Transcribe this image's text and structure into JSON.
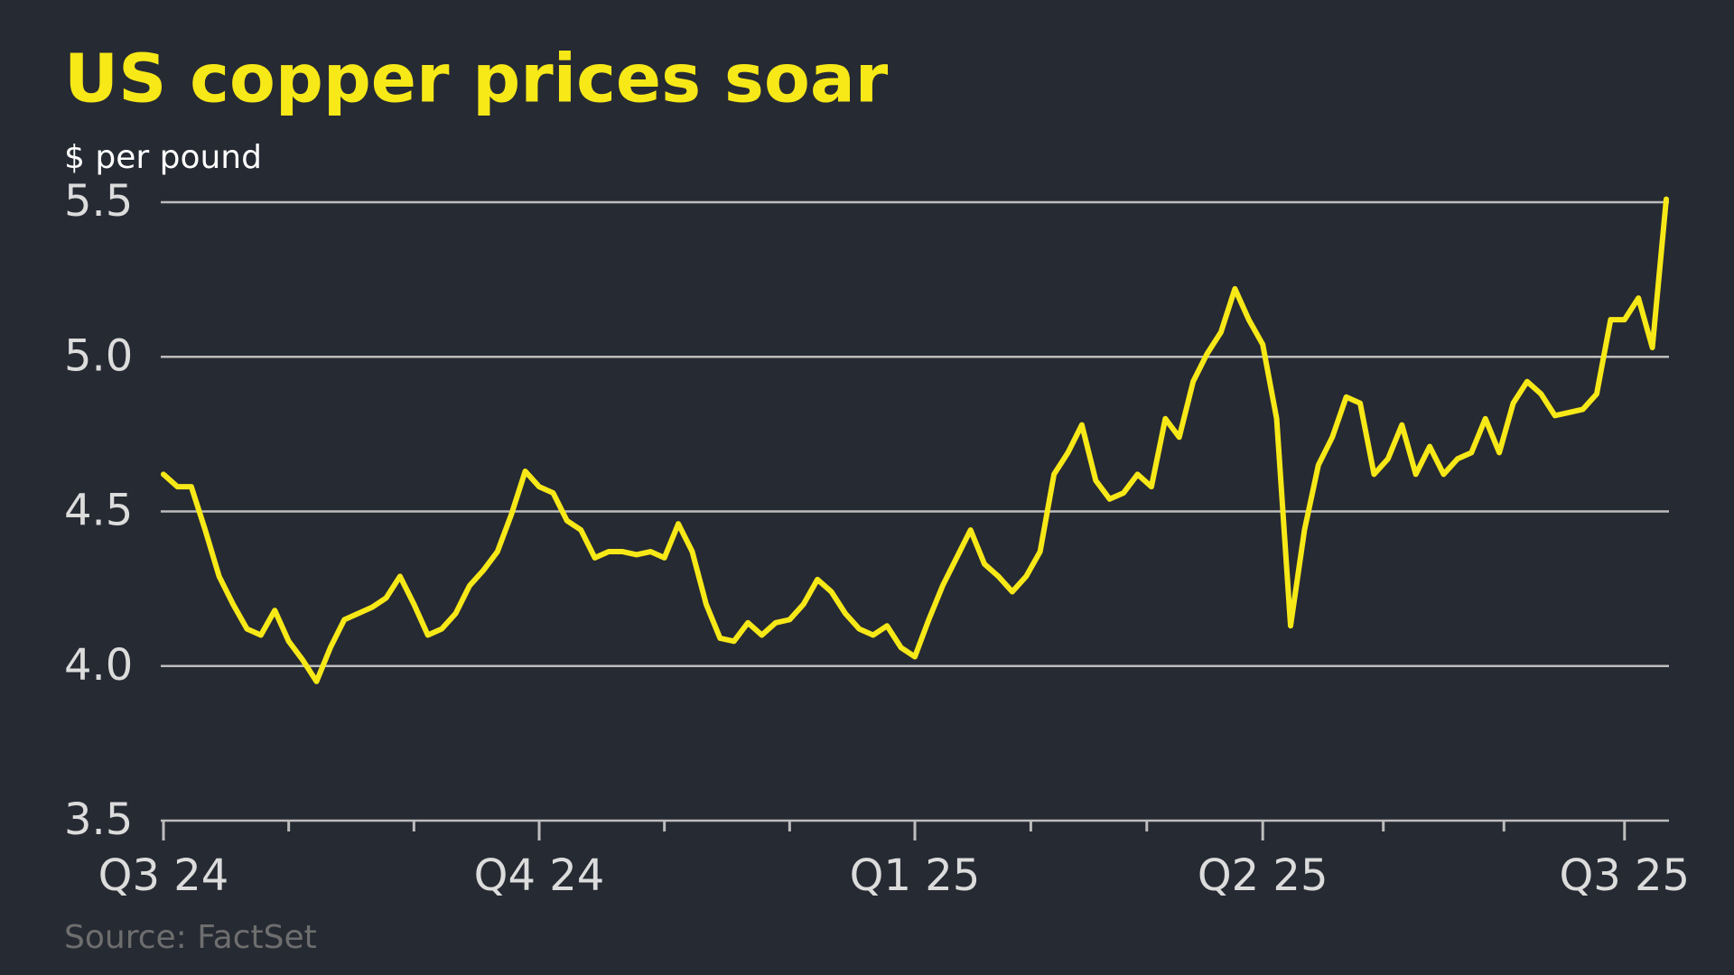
{
  "chart_data": {
    "type": "line",
    "title": "US copper prices soar",
    "subtitle": "$ per pound",
    "source": "Source: FactSet",
    "categories": [
      "Q3 24",
      null,
      null,
      null,
      null,
      null,
      null,
      null,
      null,
      null,
      null,
      null,
      null,
      null,
      null,
      null,
      null,
      null,
      null,
      null,
      null,
      null,
      null,
      null,
      null,
      null,
      null,
      "Q4 24",
      null,
      null,
      null,
      null,
      null,
      null,
      null,
      null,
      null,
      null,
      null,
      null,
      null,
      null,
      null,
      null,
      null,
      null,
      null,
      null,
      null,
      null,
      null,
      null,
      null,
      null,
      "Q1 25",
      null,
      null,
      null,
      null,
      null,
      null,
      null,
      null,
      null,
      null,
      null,
      null,
      null,
      null,
      null,
      null,
      null,
      null,
      null,
      null,
      null,
      null,
      null,
      null,
      "Q2 25",
      null,
      null,
      null,
      null,
      null,
      null,
      null,
      null,
      null,
      null,
      null,
      null,
      null,
      null,
      null,
      null,
      null,
      null,
      null,
      null,
      null,
      null,
      null,
      null,
      null,
      "Q3 25",
      null,
      null,
      null
    ],
    "values": [
      4.62,
      4.58,
      4.58,
      4.44,
      4.29,
      4.2,
      4.12,
      4.1,
      4.18,
      4.08,
      4.02,
      3.95,
      4.06,
      4.15,
      4.17,
      4.19,
      4.22,
      4.29,
      4.2,
      4.1,
      4.12,
      4.17,
      4.26,
      4.31,
      4.37,
      4.49,
      4.63,
      4.58,
      4.56,
      4.47,
      4.44,
      4.35,
      4.37,
      4.37,
      4.36,
      4.37,
      4.35,
      4.46,
      4.37,
      4.2,
      4.09,
      4.08,
      4.14,
      4.1,
      4.14,
      4.15,
      4.2,
      4.28,
      4.24,
      4.17,
      4.12,
      4.1,
      4.13,
      4.06,
      4.03,
      4.15,
      4.26,
      4.35,
      4.44,
      4.33,
      4.29,
      4.24,
      4.29,
      4.37,
      4.62,
      4.69,
      4.78,
      4.6,
      4.54,
      4.56,
      4.62,
      4.58,
      4.8,
      4.74,
      4.92,
      5.01,
      5.08,
      5.22,
      5.12,
      5.04,
      4.8,
      4.13,
      4.44,
      4.65,
      4.74,
      4.87,
      4.85,
      4.62,
      4.67,
      4.78,
      4.62,
      4.71,
      4.62,
      4.67,
      4.69,
      4.8,
      4.69,
      4.85,
      4.92,
      4.88,
      4.81,
      4.82,
      4.83,
      4.88,
      5.12,
      5.12,
      5.19,
      5.03,
      5.51
    ],
    "color": "#f7e817",
    "ylim": [
      3.5,
      5.5
    ],
    "yticks": [
      3.5,
      {
        "value": 4,
        "label": "4.0"
      },
      4.5,
      {
        "value": 5,
        "label": "5.0"
      },
      5.5
    ],
    "grid": true
  }
}
